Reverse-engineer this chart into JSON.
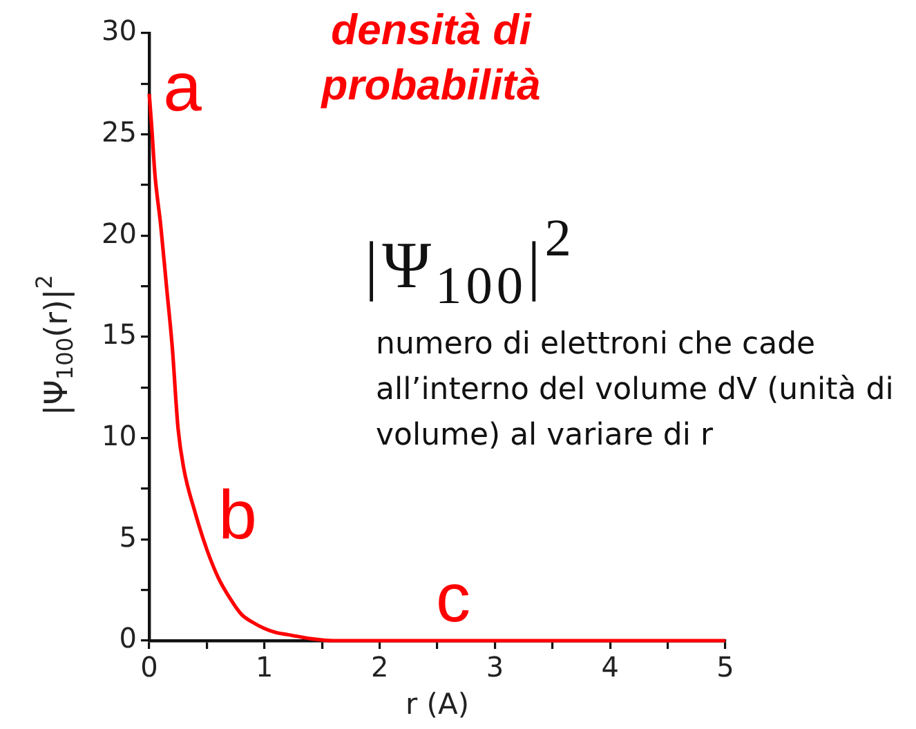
{
  "chart_data": {
    "type": "line",
    "title": "densità di probabilità",
    "xlabel": "r (A)",
    "ylabel": "|Ψ$_{100}$(r)|$^{2}$",
    "x": [
      0,
      0.02,
      0.05,
      0.1,
      0.15,
      0.2,
      0.25,
      0.3,
      0.4,
      0.5,
      0.6,
      0.7,
      0.8,
      0.9,
      1,
      1.1,
      1.2,
      1.4,
      1.6,
      2.15,
      3,
      4,
      5
    ],
    "values": [
      27,
      25.5,
      23,
      20.5,
      17.5,
      14.5,
      10.5,
      8.5,
      6.3,
      4.5,
      3.1,
      2.1,
      1.3,
      0.9,
      0.6,
      0.4,
      0.3,
      0.1,
      0,
      0,
      0,
      0,
      0
    ],
    "color": "#ff0000",
    "xlim": [
      0,
      5
    ],
    "xticks": [
      0,
      {
        "value": 0.5,
        "label": null
      },
      1,
      {
        "value": 1.5,
        "label": null
      },
      2,
      {
        "value": 2.5,
        "label": null
      },
      3,
      {
        "value": 3.5,
        "label": null
      },
      4,
      {
        "value": 4.5,
        "label": null
      },
      5
    ],
    "ylim": [
      0,
      30
    ],
    "yticks": [
      0,
      {
        "value": 2.5,
        "label": null
      },
      5,
      {
        "value": 7.5,
        "label": null
      },
      10,
      {
        "value": 12.5,
        "label": null
      },
      15,
      {
        "value": 17.5,
        "label": null
      },
      20,
      {
        "value": 22.5,
        "label": null
      },
      25,
      {
        "value": 27.5,
        "label": null
      },
      30
    ],
    "grid": false,
    "legend": false,
    "marker": "none",
    "annotations": [
      "a",
      "b",
      "c",
      "|Ψ$_{100}$|$^{2}$",
      "numero di elettroni che cade all’interno del volume dV (unità di volume) al variare di r"
    ]
  }
}
